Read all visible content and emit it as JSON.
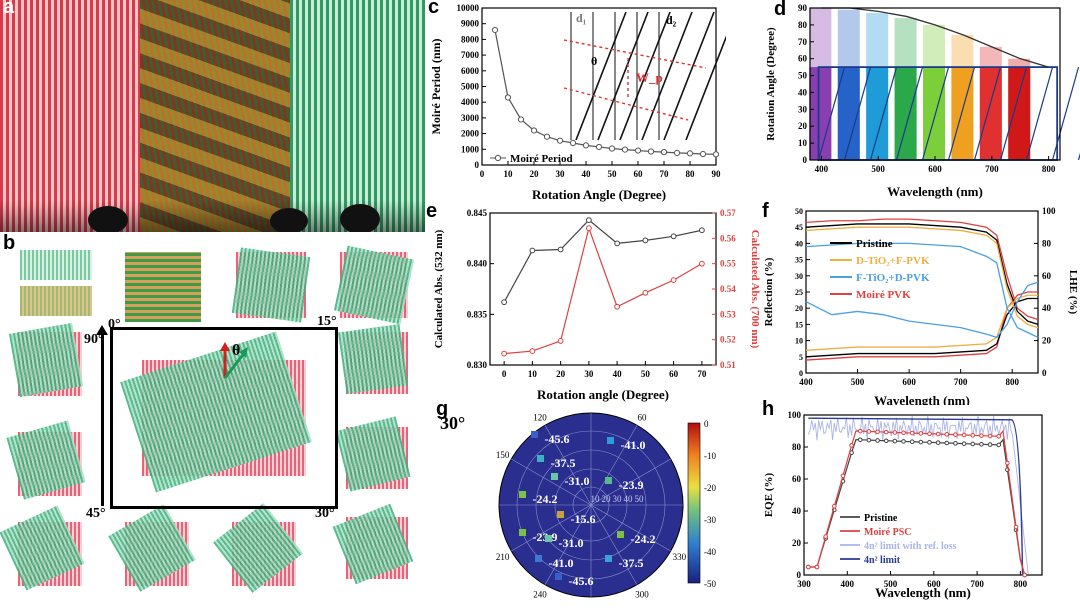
{
  "panels": {
    "a": "a",
    "b": "b",
    "c": "c",
    "d": "d",
    "e": "e",
    "f": "f",
    "g": "g",
    "h": "h"
  },
  "panel_b": {
    "angles": [
      "0°",
      "90°",
      "15°",
      "45°",
      "30°"
    ],
    "theta": "θ"
  },
  "chart_data": [
    {
      "id": "c",
      "type": "line",
      "xlabel": "Rotation Angle (Degree)",
      "ylabel": "Moiré Period (nm)",
      "xlim": [
        0,
        90
      ],
      "ylim": [
        0,
        10000
      ],
      "xticks": [
        0,
        10,
        20,
        30,
        40,
        50,
        60,
        70,
        80,
        90
      ],
      "yticks": [
        0,
        1000,
        2000,
        3000,
        4000,
        5000,
        6000,
        7000,
        8000,
        9000,
        10000
      ],
      "series": [
        {
          "name": "Moiré Period",
          "color": "#555555",
          "x": [
            5,
            10,
            15,
            20,
            25,
            30,
            35,
            40,
            45,
            50,
            55,
            60,
            65,
            70,
            75,
            80,
            85,
            90
          ],
          "y": [
            8600,
            4300,
            2900,
            2200,
            1800,
            1550,
            1400,
            1250,
            1150,
            1050,
            980,
            920,
            860,
            820,
            770,
            740,
            700,
            680
          ]
        }
      ],
      "inset_labels": {
        "d1": "d₁",
        "d2": "d₂",
        "theta": "θ",
        "wp": "W_p"
      }
    },
    {
      "id": "d",
      "type": "bar",
      "xlabel": "Wavelength (nm)",
      "ylabel": "Rotation Angle (Degree)",
      "xlim": [
        380,
        820
      ],
      "ylim": [
        0,
        90
      ],
      "xticks": [
        400,
        500,
        600,
        700,
        800
      ],
      "yticks": [
        0,
        10,
        20,
        30,
        40,
        50,
        60,
        70,
        80,
        90
      ],
      "categories": [
        400,
        450,
        500,
        550,
        600,
        650,
        700,
        750
      ],
      "values": [
        90,
        89,
        87,
        84,
        80,
        74,
        67,
        60
      ],
      "colors": [
        "#8a3fb0",
        "#2563c9",
        "#1f9bd8",
        "#2aa84a",
        "#7ccf3a",
        "#f0a020",
        "#e03030",
        "#d01818"
      ],
      "curve": {
        "x": [
          400,
          450,
          500,
          550,
          600,
          650,
          700,
          750,
          800
        ],
        "y": [
          90,
          90,
          88,
          85,
          80,
          74,
          67,
          60,
          55
        ]
      },
      "box_y": [
        0,
        55
      ]
    },
    {
      "id": "e",
      "type": "line",
      "xlabel": "Rotation angle (Degree)",
      "ylabel_left": "Calculated Abs. (532 nm)",
      "ylabel_right": "Calculated Abs. (700 nm)",
      "xlim": [
        -5,
        75
      ],
      "xticks": [
        0,
        10,
        20,
        30,
        40,
        50,
        60,
        70
      ],
      "ylim_left": [
        0.83,
        0.845
      ],
      "yticks_left": [
        "0.830",
        "0.835",
        "0.840",
        "0.845"
      ],
      "ylim_right": [
        0.51,
        0.57
      ],
      "yticks_right": [
        "0.51",
        "0.52",
        "0.53",
        "0.54",
        "0.55",
        "0.56",
        "0.57"
      ],
      "series": [
        {
          "axis": "left",
          "color": "#444444",
          "x": [
            0,
            10,
            20,
            30,
            40,
            50,
            60,
            70
          ],
          "y": [
            0.8362,
            0.8413,
            0.8414,
            0.8443,
            0.842,
            0.8423,
            0.8427,
            0.8433
          ]
        },
        {
          "axis": "right",
          "color": "#e04040",
          "x": [
            0,
            10,
            20,
            30,
            40,
            50,
            60,
            70
          ],
          "y": [
            0.5145,
            0.5155,
            0.5195,
            0.564,
            0.533,
            0.5385,
            0.5435,
            0.55
          ]
        }
      ]
    },
    {
      "id": "f",
      "type": "line",
      "xlabel": "Wavelength (nm)",
      "ylabel_left": "Reflection (%)",
      "ylabel_right": "LHE (%)",
      "xlim": [
        400,
        850
      ],
      "xticks": [
        400,
        500,
        600,
        700,
        800
      ],
      "ylim_left": [
        0,
        50
      ],
      "yticks_left": [
        0,
        5,
        10,
        15,
        20,
        25,
        30,
        35,
        40,
        45,
        50
      ],
      "ylim_right": [
        0,
        100
      ],
      "yticks_right": [
        0,
        20,
        40,
        60,
        80,
        100
      ],
      "legend": [
        {
          "name": "Pristine",
          "color": "#000000"
        },
        {
          "name": "D-TiO₂+F-PVK",
          "color": "#f0b040"
        },
        {
          "name": "F-TiO₂+D-PVK",
          "color": "#4aa0e0"
        },
        {
          "name": "Moiré PVK",
          "color": "#e04040"
        }
      ]
    },
    {
      "id": "g",
      "type": "heatmap",
      "title": "30°",
      "angle_labels": [
        "120",
        "60",
        "150",
        "330",
        "210",
        "240",
        "300"
      ],
      "radial_labels": [
        "10",
        "20",
        "30",
        "40",
        "50"
      ],
      "colorbar": [
        0,
        -10,
        -20,
        -30,
        -40,
        -50
      ],
      "values": [
        "-45.6",
        "-41.0",
        "-37.5",
        "-31.0",
        "-23.9",
        "-24.2",
        "-15.6",
        "-23.9",
        "-31.0",
        "-24.2",
        "-41.0",
        "-37.5",
        "-45.6"
      ]
    },
    {
      "id": "h",
      "type": "line",
      "xlabel": "Wavelength (nm)",
      "ylabel": "EQE (%)",
      "xlim": [
        300,
        850
      ],
      "xticks": [
        300,
        400,
        500,
        600,
        700,
        800
      ],
      "ylim": [
        0,
        100
      ],
      "yticks": [
        0,
        20,
        40,
        60,
        80,
        100
      ],
      "legend": [
        {
          "name": "Pristine",
          "color": "#444444"
        },
        {
          "name": "Moiré PSC",
          "color": "#e04040"
        },
        {
          "name": "4n² limit with ref. loss",
          "color": "#aab4e8"
        },
        {
          "name": "4n² limit",
          "color": "#2a3a9a"
        }
      ]
    }
  ]
}
